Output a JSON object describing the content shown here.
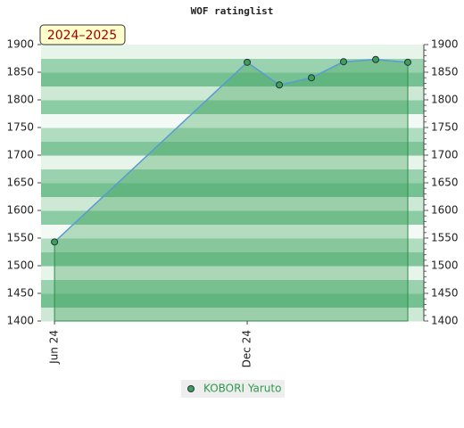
{
  "chart_data": {
    "type": "line",
    "title": "WOF ratinglist",
    "badge": "2024–2025",
    "x": [
      0,
      6,
      7,
      8,
      9,
      10,
      11
    ],
    "xlim": [
      -0.42,
      11.5
    ],
    "xticks": [
      {
        "value": 0,
        "label": "Jun 24"
      },
      {
        "value": 6,
        "label": "Dec 24"
      }
    ],
    "series": [
      {
        "name": "KOBORI Yaruto",
        "color": "#5b9bd5",
        "values": [
          1543,
          1868,
          1827,
          1840,
          1869,
          1873,
          1868
        ]
      }
    ],
    "ylim": [
      1400,
      1900
    ],
    "yticks": [
      1400,
      1450,
      1500,
      1550,
      1600,
      1650,
      1700,
      1750,
      1800,
      1850,
      1900
    ],
    "y2lim": [
      1400,
      1900
    ],
    "y2ticks": [
      1400,
      1450,
      1500,
      1550,
      1600,
      1650,
      1700,
      1750,
      1800,
      1850,
      1900
    ]
  }
}
